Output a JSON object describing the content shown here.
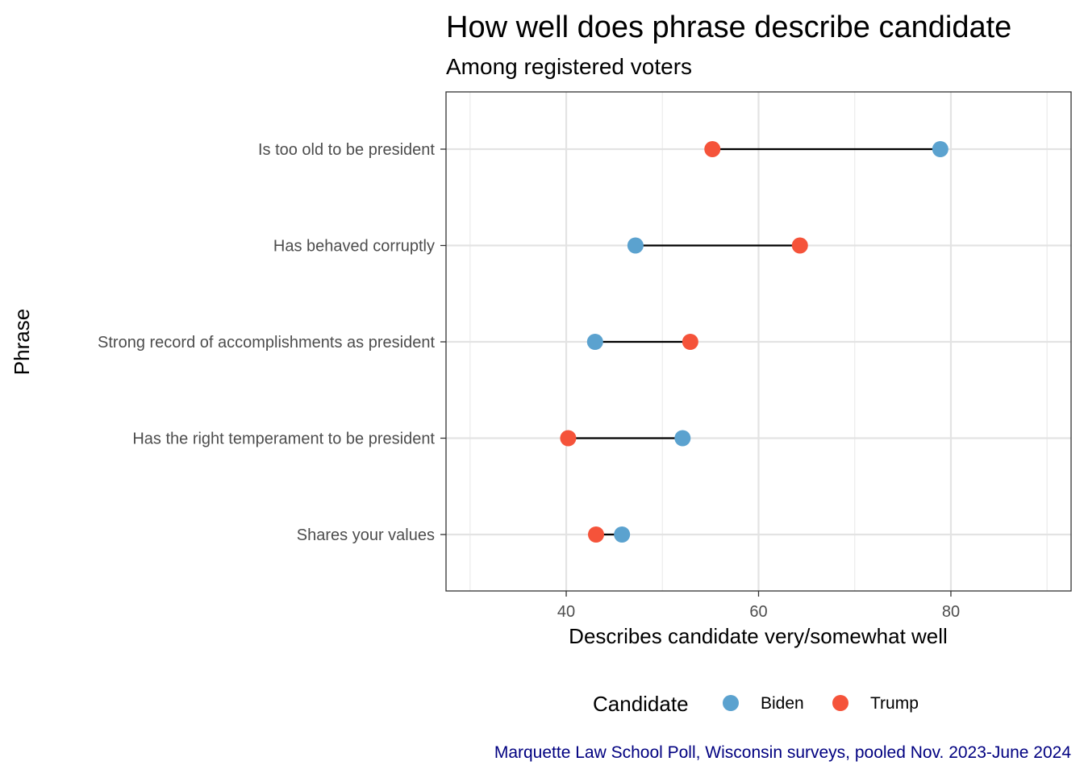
{
  "chart_data": {
    "type": "dumbbell",
    "title": "How well does phrase describe candidate",
    "subtitle": "Among registered voters",
    "xlabel": "Describes candidate very/somewhat well",
    "ylabel": "Phrase",
    "caption": "Marquette Law School Poll, Wisconsin surveys, pooled Nov. 2023-June 2024",
    "xlim": [
      27.5,
      92.5
    ],
    "x_ticks": [
      40,
      60,
      80
    ],
    "x_minor_ticks": [
      30,
      50,
      70,
      90
    ],
    "grid": true,
    "legend": {
      "title": "Candidate",
      "position": "bottom"
    },
    "categories": [
      "Is too old to be president",
      "Has behaved corruptly",
      "Strong record of accomplishments as president",
      "Has the right temperament to be president",
      "Shares your values"
    ],
    "series": [
      {
        "name": "Biden",
        "color": "#5ba2cf",
        "values": [
          78.9,
          47.2,
          43.0,
          52.1,
          45.8
        ]
      },
      {
        "name": "Trump",
        "color": "#f5533a",
        "values": [
          55.2,
          64.3,
          52.9,
          40.2,
          43.1
        ]
      }
    ]
  }
}
